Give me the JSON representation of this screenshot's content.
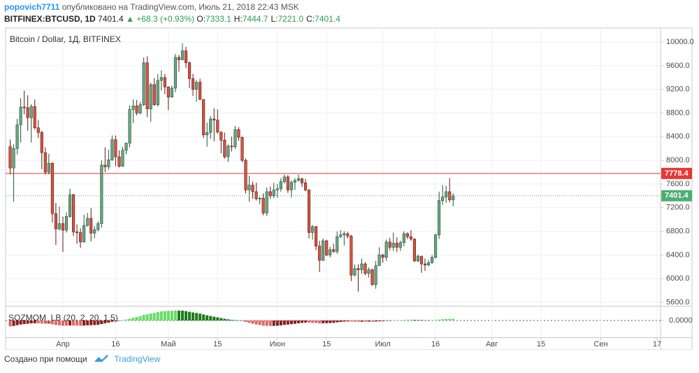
{
  "header": {
    "author": "popovich7711",
    "published": "опубликовано на TradingView.com, Июль 21, 2018 22:43 MSK",
    "symbol": "BITFINEX:BTCUSD, 1D",
    "last": "7401.4",
    "change": "+68.3 (+0.93%)",
    "ohlc": [
      {
        "key": "O:",
        "value": "7333.1"
      },
      {
        "key": "H:",
        "value": "7444.7"
      },
      {
        "key": "L:",
        "value": "7221.0"
      },
      {
        "key": "C:",
        "value": "7401.4"
      }
    ]
  },
  "chart_data": [
    {
      "type": "candlestick",
      "title": "Bitcoin / Dollar, 1Д, BITFINEX",
      "open": [
        8230,
        7870,
        8200,
        8600,
        8900,
        8890,
        8720,
        8910,
        8550,
        8470,
        8130,
        7800,
        7950,
        7100,
        6840,
        6930,
        6820,
        7050,
        7420,
        6790,
        6780,
        6620,
        6900,
        7020,
        6770,
        6830,
        6930,
        7920,
        7890,
        8010,
        8350,
        8060,
        7900,
        8170,
        8290,
        8860,
        8920,
        8800,
        8940,
        9650,
        8870,
        9280,
        8940,
        9350,
        9400,
        9240,
        9070,
        9220,
        9740,
        9700,
        9850,
        9650,
        9380,
        9200,
        9320,
        9030,
        8430,
        8470,
        8700,
        8680,
        8480,
        8340,
        8060,
        8240,
        8230,
        8520,
        8390,
        8000,
        7500,
        7580,
        7470,
        7350,
        7360,
        7110,
        7470,
        7400,
        7500,
        7520,
        7640,
        7720,
        7500,
        7630,
        7660,
        7690,
        7620,
        7500,
        6780,
        6880,
        6550,
        6310,
        6640,
        6400,
        6490,
        6460,
        6710,
        6740,
        6760,
        6720,
        6060,
        6170,
        6150,
        6250,
        6090,
        6150,
        5900,
        6220,
        6400,
        6360,
        6620,
        6530,
        6600,
        6530,
        6610,
        6760,
        6710,
        6670,
        6300,
        6380,
        6250,
        6230,
        6270,
        6360,
        6740,
        7320,
        7380,
        7470,
        7333.1
      ],
      "high": [
        8350,
        8270,
        8700,
        9050,
        9180,
        9100,
        8950,
        9030,
        8680,
        8500,
        8220,
        8110,
        7970,
        7280,
        7220,
        7050,
        7120,
        7520,
        7430,
        6920,
        6850,
        7080,
        7110,
        7190,
        6890,
        6970,
        8000,
        8220,
        8180,
        8420,
        8420,
        8170,
        8230,
        8300,
        8930,
        9030,
        9020,
        8990,
        9740,
        9760,
        9310,
        9390,
        9460,
        9520,
        9460,
        9250,
        9260,
        9800,
        9780,
        9980,
        9920,
        9670,
        9460,
        9360,
        9380,
        9030,
        8640,
        8750,
        8880,
        8860,
        8480,
        8470,
        8270,
        8400,
        8580,
        8560,
        8400,
        8030,
        7740,
        7640,
        7620,
        7380,
        7440,
        7540,
        7560,
        7620,
        7600,
        7700,
        7760,
        7750,
        7660,
        7700,
        7760,
        7700,
        7690,
        7510,
        6910,
        6890,
        6640,
        6680,
        6660,
        6540,
        6590,
        6800,
        6820,
        6800,
        6790,
        6740,
        6240,
        6240,
        6340,
        6280,
        6190,
        6170,
        6300,
        6530,
        6420,
        6660,
        6690,
        6780,
        6700,
        6640,
        6800,
        6780,
        6820,
        6680,
        6410,
        6380,
        6340,
        6320,
        6400,
        6760,
        7470,
        7580,
        7570,
        7700,
        7444.7
      ],
      "low": [
        7760,
        7300,
        8100,
        8300,
        8780,
        8500,
        8300,
        8520,
        8380,
        7850,
        7760,
        7760,
        6950,
        6570,
        6820,
        6450,
        6780,
        7030,
        6720,
        6590,
        6520,
        6610,
        6880,
        6630,
        6680,
        6800,
        6860,
        7800,
        7840,
        7990,
        7900,
        7880,
        7890,
        8100,
        8220,
        8630,
        8760,
        8780,
        8920,
        8730,
        8650,
        8920,
        8910,
        9180,
        9120,
        8850,
        9060,
        9150,
        9500,
        9690,
        9560,
        9220,
        9090,
        8990,
        9020,
        8380,
        8230,
        8360,
        8320,
        8450,
        8120,
        8030,
        7970,
        8150,
        8190,
        8330,
        7970,
        7440,
        7300,
        7350,
        7320,
        7260,
        7070,
        7060,
        7350,
        7360,
        7370,
        7470,
        7610,
        7450,
        7370,
        7500,
        7640,
        7550,
        7480,
        6680,
        6660,
        6480,
        6110,
        6300,
        6380,
        6360,
        6440,
        6420,
        6690,
        6560,
        6680,
        5960,
        6040,
        5780,
        6080,
        6060,
        6020,
        5880,
        5830,
        6220,
        6270,
        6300,
        6480,
        6470,
        6450,
        6470,
        6550,
        6670,
        6640,
        6280,
        6280,
        6100,
        6130,
        6210,
        6250,
        6340,
        6670,
        7250,
        7280,
        7290,
        7221.0
      ],
      "close": [
        7870,
        8200,
        8600,
        8900,
        8890,
        8720,
        8910,
        8550,
        8470,
        8130,
        7800,
        7950,
        7100,
        6840,
        6930,
        6820,
        7050,
        7420,
        6790,
        6780,
        6620,
        6900,
        7020,
        6770,
        6830,
        6930,
        7920,
        7890,
        8010,
        8350,
        8060,
        7900,
        8170,
        8290,
        8860,
        8920,
        8800,
        8940,
        9650,
        8870,
        9280,
        8940,
        9350,
        9400,
        9240,
        9070,
        9220,
        9740,
        9700,
        9850,
        9650,
        9380,
        9200,
        9320,
        9030,
        8430,
        8470,
        8700,
        8680,
        8480,
        8340,
        8060,
        8240,
        8230,
        8520,
        8390,
        8000,
        7500,
        7580,
        7470,
        7350,
        7360,
        7110,
        7470,
        7400,
        7500,
        7520,
        7640,
        7720,
        7500,
        7630,
        7660,
        7690,
        7620,
        7500,
        6780,
        6880,
        6550,
        6310,
        6640,
        6400,
        6490,
        6460,
        6710,
        6740,
        6760,
        6720,
        6060,
        6170,
        6150,
        6250,
        6090,
        6150,
        5900,
        6220,
        6400,
        6360,
        6620,
        6530,
        6600,
        6530,
        6610,
        6760,
        6710,
        6670,
        6300,
        6380,
        6250,
        6230,
        6270,
        6360,
        6740,
        7320,
        7380,
        7470,
        7333.1,
        7401.4
      ],
      "up_color": "#6ba583",
      "down_color": "#d75442",
      "up_border": "#225437",
      "down_border": "#5b1a13",
      "hline": {
        "value": 7778.4,
        "color": "#e53935"
      },
      "last_color": "#4caf72",
      "xlim": [
        -1.3,
        185
      ],
      "ylim": [
        5541,
        10237
      ],
      "yticks": [
        {
          "value": 5600,
          "label": "5600.0"
        },
        {
          "value": 6000,
          "label": "6000.0"
        },
        {
          "value": 6400,
          "label": "6400.0"
        },
        {
          "value": 6800,
          "label": "6800.0"
        },
        {
          "value": 7200,
          "label": "7200.0"
        },
        {
          "value": 7600,
          "label": "7600.0"
        },
        {
          "value": 8000,
          "label": "8000.0"
        },
        {
          "value": 8400,
          "label": "8400.0"
        },
        {
          "value": 8800,
          "label": "8800.0"
        },
        {
          "value": 9200,
          "label": "9200.0"
        },
        {
          "value": 9600,
          "label": "9600.0"
        },
        {
          "value": 10000,
          "label": "10000.0"
        }
      ],
      "grid": true
    },
    {
      "type": "histogram",
      "title": "SQZMOM_LB (20, 2, 20, 1.5)",
      "values": [
        -700,
        -650,
        -560,
        -480,
        -420,
        -380,
        -340,
        -330,
        -330,
        -350,
        -380,
        -400,
        -460,
        -530,
        -580,
        -620,
        -620,
        -590,
        -600,
        -610,
        -620,
        -600,
        -570,
        -560,
        -540,
        -510,
        -420,
        -330,
        -250,
        -150,
        -80,
        -20,
        40,
        110,
        220,
        330,
        420,
        520,
        680,
        740,
        840,
        900,
        1000,
        1080,
        1120,
        1150,
        1160,
        1200,
        1190,
        1180,
        1120,
        1040,
        960,
        900,
        820,
        720,
        620,
        540,
        460,
        380,
        300,
        210,
        140,
        80,
        50,
        20,
        -60,
        -180,
        -280,
        -380,
        -470,
        -540,
        -620,
        -640,
        -650,
        -640,
        -620,
        -580,
        -520,
        -480,
        -440,
        -390,
        -330,
        -280,
        -240,
        -260,
        -280,
        -300,
        -340,
        -330,
        -320,
        -300,
        -270,
        -220,
        -170,
        -130,
        -100,
        -120,
        -140,
        -150,
        -140,
        -140,
        -130,
        -140,
        -120,
        -90,
        -70,
        -40,
        -20,
        10,
        20,
        40,
        70,
        90,
        100,
        80,
        70,
        60,
        40,
        30,
        30,
        60,
        110,
        150,
        180,
        190,
        200
      ],
      "colors": {
        "pos_up": "#66dd66",
        "pos_down": "#1b7d1b",
        "neg_down": "#e06666",
        "neg_up": "#8b1a1a"
      },
      "xlim": [
        -1.3,
        185
      ],
      "ylim": [
        -1500,
        1500
      ],
      "yticks": [
        {
          "value": 0,
          "label": "0.0000"
        }
      ],
      "xticks": [
        {
          "value": 15,
          "label": "Апр"
        },
        {
          "value": 30,
          "label": "16"
        },
        {
          "value": 45,
          "label": "Май"
        },
        {
          "value": 59,
          "label": "15"
        },
        {
          "value": 76,
          "label": "Июн"
        },
        {
          "value": 90,
          "label": "15"
        },
        {
          "value": 106,
          "label": "Июл"
        },
        {
          "value": 121,
          "label": "16"
        },
        {
          "value": 137,
          "label": "Авг"
        },
        {
          "value": 151,
          "label": "15"
        },
        {
          "value": 168,
          "label": "Сен"
        },
        {
          "value": 184,
          "label": "17"
        }
      ]
    }
  ],
  "footer": {
    "text": "Создано при помощи",
    "brand": "TradingView"
  }
}
